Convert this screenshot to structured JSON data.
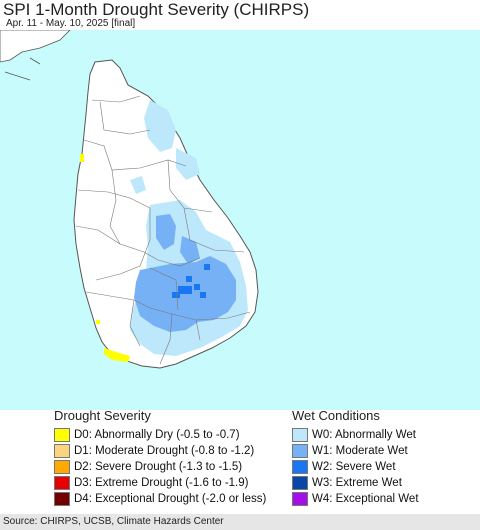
{
  "header": {
    "title": "SPI 1-Month Drought Severity (CHIRPS)",
    "subtitle": "Apr. 11 - May. 10, 2025 [final]"
  },
  "colors": {
    "ocean": "#c8fcfc",
    "land": "#ffffff",
    "boundary": "#555555",
    "W0": "#bde8fb",
    "W1": "#77b1f5",
    "W2": "#1a76f2",
    "D0": "#ffff00"
  },
  "legend": {
    "drought_title": "Drought Severity",
    "drought": [
      {
        "label": "D0: Abnormally Dry (-0.5 to -0.7)",
        "color": "#ffff00"
      },
      {
        "label": "D1: Moderate Drought (-0.8 to -1.2)",
        "color": "#fcd37f"
      },
      {
        "label": "D2: Severe Drought (-1.3 to -1.5)",
        "color": "#ffaa00"
      },
      {
        "label": "D3: Extreme Drought (-1.6 to -1.9)",
        "color": "#e60000"
      },
      {
        "label": "D4: Exceptional Drought (-2.0 or less)",
        "color": "#730000"
      }
    ],
    "wet_title": "Wet Conditions",
    "wet": [
      {
        "label": "W0: Abnormally Wet",
        "color": "#bde8fb"
      },
      {
        "label": "W1: Moderate Wet",
        "color": "#77b1f5"
      },
      {
        "label": "W2: Severe Wet",
        "color": "#1a76f2"
      },
      {
        "label": "W3: Extreme Wet",
        "color": "#0747a8"
      },
      {
        "label": "W4: Exceptional Wet",
        "color": "#a30fe8"
      }
    ]
  },
  "footer": {
    "source": "Source: CHIRPS, UCSB, Climate Hazards Center"
  }
}
